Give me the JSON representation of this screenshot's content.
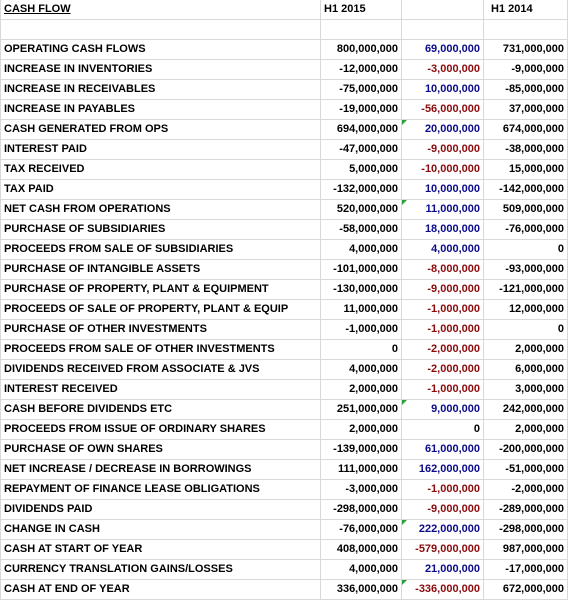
{
  "header": {
    "title": "CASH FLOW",
    "col1": "H1 2015",
    "col2": "",
    "col3": "H1 2014"
  },
  "rows": [
    {
      "label": "",
      "v1": "",
      "v2": "",
      "v3": ""
    },
    {
      "label": "OPERATING CASH FLOWS",
      "v1": "800,000,000",
      "v2": "69,000,000",
      "v3": "731,000,000"
    },
    {
      "label": "INCREASE IN INVENTORIES",
      "v1": "-12,000,000",
      "v2": "-3,000,000",
      "v3": "-9,000,000"
    },
    {
      "label": "INCREASE IN RECEIVABLES",
      "v1": "-75,000,000",
      "v2": "10,000,000",
      "v3": "-85,000,000"
    },
    {
      "label": "INCREASE IN PAYABLES",
      "v1": "-19,000,000",
      "v2": "-56,000,000",
      "v3": "37,000,000"
    },
    {
      "label": "CASH GENERATED FROM OPS",
      "v1": "694,000,000",
      "v2": "20,000,000",
      "v3": "674,000,000"
    },
    {
      "label": "INTEREST PAID",
      "v1": "-47,000,000",
      "v2": "-9,000,000",
      "v3": "-38,000,000"
    },
    {
      "label": "TAX RECEIVED",
      "v1": "5,000,000",
      "v2": "-10,000,000",
      "v3": "15,000,000"
    },
    {
      "label": "TAX PAID",
      "v1": "-132,000,000",
      "v2": "10,000,000",
      "v3": "-142,000,000"
    },
    {
      "label": "NET CASH FROM OPERATIONS",
      "v1": "520,000,000",
      "v2": "11,000,000",
      "v3": "509,000,000"
    },
    {
      "label": "PURCHASE OF SUBSIDIARIES",
      "v1": "-58,000,000",
      "v2": "18,000,000",
      "v3": "-76,000,000"
    },
    {
      "label": "PROCEEDS FROM SALE OF SUBSIDIARIES",
      "v1": "4,000,000",
      "v2": "4,000,000",
      "v3": "0"
    },
    {
      "label": "PURCHASE OF INTANGIBLE ASSETS",
      "v1": "-101,000,000",
      "v2": "-8,000,000",
      "v3": "-93,000,000"
    },
    {
      "label": "PURCHASE OF PROPERTY, PLANT & EQUIPMENT",
      "v1": "-130,000,000",
      "v2": "-9,000,000",
      "v3": "-121,000,000"
    },
    {
      "label": "PROCEEDS OF SALE OF PROPERTY, PLANT & EQUIP",
      "v1": "11,000,000",
      "v2": "-1,000,000",
      "v3": "12,000,000"
    },
    {
      "label": "PURCHASE OF OTHER INVESTMENTS",
      "v1": "-1,000,000",
      "v2": "-1,000,000",
      "v3": "0"
    },
    {
      "label": "PROCEEDS FROM SALE OF OTHER INVESTMENTS",
      "v1": "0",
      "v2": "-2,000,000",
      "v3": "2,000,000"
    },
    {
      "label": "DIVIDENDS RECEIVED FROM ASSOCIATE & JVS",
      "v1": "4,000,000",
      "v2": "-2,000,000",
      "v3": "6,000,000"
    },
    {
      "label": "INTEREST RECEIVED",
      "v1": "2,000,000",
      "v2": "-1,000,000",
      "v3": "3,000,000"
    },
    {
      "label": "CASH BEFORE DIVIDENDS ETC",
      "v1": "251,000,000",
      "v2": "9,000,000",
      "v3": "242,000,000"
    },
    {
      "label": "PROCEEDS FROM ISSUE OF ORDINARY SHARES",
      "v1": "2,000,000",
      "v2": "0",
      "v3": "2,000,000"
    },
    {
      "label": "PURCHASE OF OWN SHARES",
      "v1": "-139,000,000",
      "v2": "61,000,000",
      "v3": "-200,000,000"
    },
    {
      "label": "NET INCREASE / DECREASE IN BORROWINGS",
      "v1": "111,000,000",
      "v2": "162,000,000",
      "v3": "-51,000,000"
    },
    {
      "label": "REPAYMENT OF FINANCE LEASE OBLIGATIONS",
      "v1": "-3,000,000",
      "v2": "-1,000,000",
      "v3": "-2,000,000"
    },
    {
      "label": "DIVIDENDS PAID",
      "v1": "-298,000,000",
      "v2": "-9,000,000",
      "v3": "-289,000,000"
    },
    {
      "label": "CHANGE IN CASH",
      "v1": "-76,000,000",
      "v2": "222,000,000",
      "v3": "-298,000,000"
    },
    {
      "label": "CASH AT START OF YEAR",
      "v1": "408,000,000",
      "v2": "-579,000,000",
      "v3": "987,000,000"
    },
    {
      "label": "CURRENCY TRANSLATION GAINS/LOSSES",
      "v1": "4,000,000",
      "v2": "21,000,000",
      "v3": "-17,000,000"
    },
    {
      "label": "CASH AT END OF YEAR",
      "v1": "336,000,000",
      "v2": "-336,000,000",
      "v3": "672,000,000"
    }
  ],
  "colors": {
    "positive_diff": "#0b0b8a",
    "negative_diff": "#8a0b0b",
    "gridline": "#d9d9d9",
    "comment_flag": "#2e9e3a"
  }
}
